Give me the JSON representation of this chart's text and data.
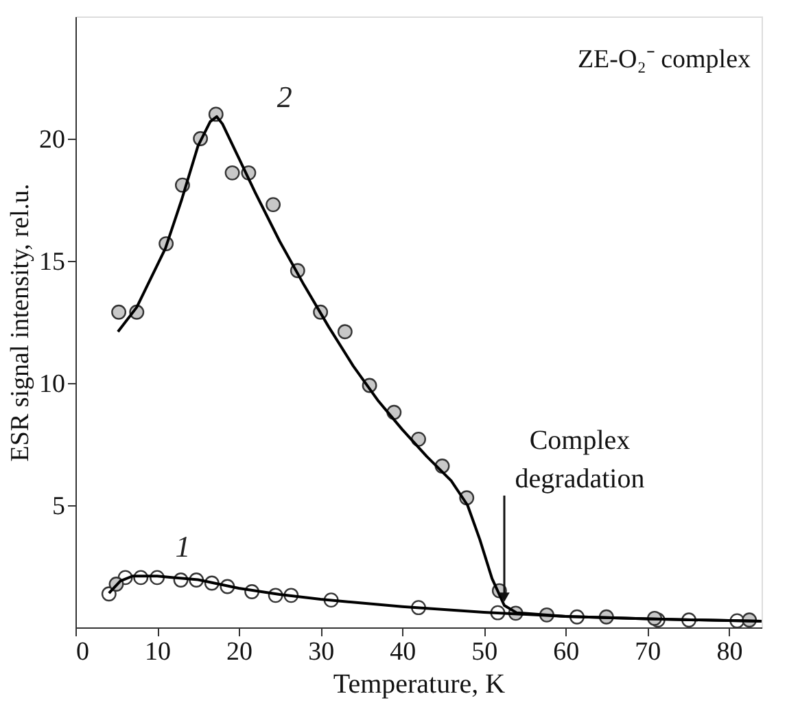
{
  "chart_data": {
    "type": "scatter",
    "xlabel": "Temperature, K",
    "ylabel": "ESR signal intensity, rel.u.",
    "xlim": [
      0,
      84
    ],
    "ylim": [
      0,
      25
    ],
    "xticks": [
      0,
      10,
      20,
      30,
      40,
      50,
      60,
      70,
      80
    ],
    "yticks": [
      5,
      10,
      15,
      20
    ],
    "grid": false,
    "legend": false,
    "marker": "circle",
    "annotations": [
      "ZE-O₂⁻ complex",
      {
        "text": "Complex degradation",
        "x": 52.5,
        "y": 0.9
      }
    ],
    "series": [
      {
        "name": "1",
        "color": "#ffffff",
        "x": [
          4.1,
          6.1,
          8.0,
          10.0,
          12.9,
          14.8,
          16.7,
          18.6,
          21.6,
          24.5,
          26.4,
          31.3,
          42.0,
          51.7,
          61.4,
          71.3,
          75.1,
          81.0
        ],
        "values": [
          1.37,
          2.04,
          2.04,
          2.04,
          1.94,
          1.94,
          1.81,
          1.67,
          1.46,
          1.31,
          1.31,
          1.12,
          0.81,
          0.6,
          0.43,
          0.3,
          0.3,
          0.27
        ]
      },
      {
        "name": "2",
        "color": "#c8c8c8",
        "x": [
          5.0,
          5.3,
          7.5,
          11.1,
          13.1,
          15.3,
          17.2,
          19.2,
          21.2,
          24.2,
          27.2,
          30.0,
          33.0,
          36.0,
          39.0,
          42.0,
          44.9,
          47.9,
          51.9,
          53.9,
          57.7,
          65.0,
          70.9,
          82.5
        ],
        "values": [
          1.77,
          12.9,
          12.9,
          15.7,
          18.1,
          20.0,
          21.0,
          18.6,
          18.6,
          17.3,
          14.6,
          12.9,
          12.1,
          9.9,
          8.8,
          7.7,
          6.6,
          5.3,
          1.5,
          0.58,
          0.51,
          0.43,
          0.37,
          0.3
        ]
      },
      {
        "type": "line",
        "color": "#000000",
        "line_style": "solid",
        "marker": "none",
        "x": [
          4.1,
          5.5,
          7,
          10,
          15,
          20,
          25,
          30,
          40,
          50,
          60,
          70,
          84
        ],
        "values": [
          1.4,
          1.9,
          2.1,
          2.1,
          1.95,
          1.6,
          1.35,
          1.15,
          0.85,
          0.62,
          0.45,
          0.35,
          0.25
        ]
      },
      {
        "type": "line",
        "color": "#000000",
        "line_style": "solid",
        "marker": "none",
        "x": [
          5.2,
          7.5,
          11,
          13,
          15,
          16.5,
          17.3,
          18,
          20,
          22,
          25,
          28,
          31,
          34,
          37,
          40,
          43,
          46,
          48,
          49.5,
          51,
          52.5,
          54,
          60,
          70,
          84
        ],
        "values": [
          12.1,
          13.1,
          15.5,
          17.5,
          19.7,
          20.7,
          20.9,
          20.6,
          19.2,
          17.8,
          15.8,
          14.0,
          12.3,
          10.7,
          9.3,
          8.1,
          7.0,
          6.0,
          5.0,
          3.6,
          2.0,
          0.9,
          0.6,
          0.45,
          0.35,
          0.25
        ]
      }
    ]
  }
}
